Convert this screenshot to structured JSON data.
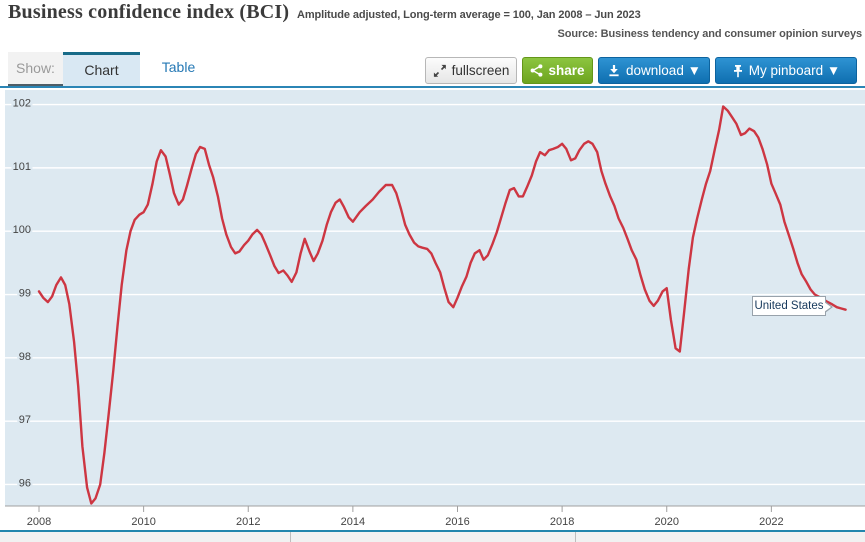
{
  "header": {
    "title": "Business confidence index (BCI)",
    "subtitle": "Amplitude adjusted, Long-term average = 100, Jan 2008 – Jun 2023",
    "source": "Source: Business tendency and consumer opinion surveys"
  },
  "toolbar": {
    "show_label": "Show:",
    "tabs": [
      {
        "label": "Chart",
        "active": true
      },
      {
        "label": "Table",
        "active": false
      }
    ],
    "buttons": {
      "fullscreen": "fullscreen",
      "share": "share",
      "download": "download ▼",
      "pinboard": "My pinboard ▼"
    }
  },
  "tooltip": {
    "label": "United States"
  },
  "colors": {
    "line": "#cd3642",
    "plot_bg": "#dde9f1",
    "grid": "#ffffff",
    "axis_text": "#444444",
    "axis_line": "#a0a0a0",
    "accent_blue": "#1778bb",
    "accent_green": "#7ab42c",
    "tab_underline": "#2b85b5"
  },
  "chart_data": {
    "type": "line",
    "title": "Business confidence index (BCI)",
    "subtitle": "Amplitude adjusted, Long-term average = 100, Jan 2008 – Jun 2023",
    "xlabel": "",
    "ylabel": "",
    "x_range": [
      2007.35,
      2023.79
    ],
    "y_range": [
      95.66,
      102.23
    ],
    "yticks": [
      96,
      97,
      98,
      99,
      100,
      101,
      102
    ],
    "xticks": [
      2008,
      2010,
      2012,
      2014,
      2016,
      2018,
      2020,
      2022
    ],
    "grid": true,
    "legend_position": "inline-tooltip",
    "series": [
      {
        "name": "United States",
        "points": [
          [
            2008.0,
            99.05
          ],
          [
            2008.08,
            98.95
          ],
          [
            2008.17,
            98.88
          ],
          [
            2008.25,
            98.97
          ],
          [
            2008.33,
            99.15
          ],
          [
            2008.42,
            99.27
          ],
          [
            2008.5,
            99.15
          ],
          [
            2008.58,
            98.85
          ],
          [
            2008.67,
            98.25
          ],
          [
            2008.75,
            97.55
          ],
          [
            2008.83,
            96.6
          ],
          [
            2008.92,
            95.95
          ],
          [
            2009.0,
            95.7
          ],
          [
            2009.08,
            95.78
          ],
          [
            2009.17,
            96.0
          ],
          [
            2009.25,
            96.5
          ],
          [
            2009.33,
            97.1
          ],
          [
            2009.42,
            97.8
          ],
          [
            2009.5,
            98.5
          ],
          [
            2009.58,
            99.15
          ],
          [
            2009.67,
            99.7
          ],
          [
            2009.75,
            100.0
          ],
          [
            2009.83,
            100.18
          ],
          [
            2009.92,
            100.26
          ],
          [
            2010.0,
            100.3
          ],
          [
            2010.08,
            100.42
          ],
          [
            2010.17,
            100.75
          ],
          [
            2010.25,
            101.1
          ],
          [
            2010.33,
            101.28
          ],
          [
            2010.42,
            101.18
          ],
          [
            2010.5,
            100.9
          ],
          [
            2010.58,
            100.6
          ],
          [
            2010.67,
            100.42
          ],
          [
            2010.75,
            100.5
          ],
          [
            2010.83,
            100.72
          ],
          [
            2010.92,
            101.0
          ],
          [
            2011.0,
            101.22
          ],
          [
            2011.08,
            101.33
          ],
          [
            2011.17,
            101.3
          ],
          [
            2011.25,
            101.05
          ],
          [
            2011.33,
            100.85
          ],
          [
            2011.42,
            100.55
          ],
          [
            2011.5,
            100.2
          ],
          [
            2011.58,
            99.95
          ],
          [
            2011.67,
            99.75
          ],
          [
            2011.75,
            99.65
          ],
          [
            2011.83,
            99.68
          ],
          [
            2011.92,
            99.78
          ],
          [
            2012.0,
            99.85
          ],
          [
            2012.08,
            99.95
          ],
          [
            2012.17,
            100.02
          ],
          [
            2012.25,
            99.95
          ],
          [
            2012.33,
            99.8
          ],
          [
            2012.42,
            99.62
          ],
          [
            2012.5,
            99.45
          ],
          [
            2012.58,
            99.34
          ],
          [
            2012.67,
            99.38
          ],
          [
            2012.75,
            99.3
          ],
          [
            2012.83,
            99.2
          ],
          [
            2012.92,
            99.35
          ],
          [
            2013.0,
            99.65
          ],
          [
            2013.08,
            99.88
          ],
          [
            2013.17,
            99.68
          ],
          [
            2013.25,
            99.53
          ],
          [
            2013.33,
            99.65
          ],
          [
            2013.42,
            99.85
          ],
          [
            2013.5,
            100.1
          ],
          [
            2013.58,
            100.3
          ],
          [
            2013.67,
            100.45
          ],
          [
            2013.75,
            100.5
          ],
          [
            2013.83,
            100.38
          ],
          [
            2013.92,
            100.22
          ],
          [
            2014.0,
            100.15
          ],
          [
            2014.13,
            100.3
          ],
          [
            2014.25,
            100.4
          ],
          [
            2014.38,
            100.5
          ],
          [
            2014.5,
            100.62
          ],
          [
            2014.63,
            100.73
          ],
          [
            2014.75,
            100.73
          ],
          [
            2014.83,
            100.6
          ],
          [
            2014.92,
            100.35
          ],
          [
            2015.0,
            100.1
          ],
          [
            2015.08,
            99.95
          ],
          [
            2015.17,
            99.82
          ],
          [
            2015.25,
            99.76
          ],
          [
            2015.33,
            99.74
          ],
          [
            2015.42,
            99.72
          ],
          [
            2015.5,
            99.65
          ],
          [
            2015.58,
            99.5
          ],
          [
            2015.67,
            99.35
          ],
          [
            2015.75,
            99.1
          ],
          [
            2015.83,
            98.88
          ],
          [
            2015.92,
            98.8
          ],
          [
            2016.0,
            98.95
          ],
          [
            2016.08,
            99.12
          ],
          [
            2016.17,
            99.28
          ],
          [
            2016.25,
            99.5
          ],
          [
            2016.33,
            99.65
          ],
          [
            2016.42,
            99.7
          ],
          [
            2016.5,
            99.55
          ],
          [
            2016.58,
            99.62
          ],
          [
            2016.67,
            99.8
          ],
          [
            2016.75,
            99.98
          ],
          [
            2016.83,
            100.2
          ],
          [
            2016.92,
            100.45
          ],
          [
            2017.0,
            100.65
          ],
          [
            2017.08,
            100.68
          ],
          [
            2017.17,
            100.55
          ],
          [
            2017.25,
            100.55
          ],
          [
            2017.33,
            100.7
          ],
          [
            2017.42,
            100.88
          ],
          [
            2017.5,
            101.1
          ],
          [
            2017.58,
            101.25
          ],
          [
            2017.67,
            101.2
          ],
          [
            2017.75,
            101.28
          ],
          [
            2017.83,
            101.3
          ],
          [
            2017.92,
            101.33
          ],
          [
            2018.0,
            101.38
          ],
          [
            2018.08,
            101.3
          ],
          [
            2018.17,
            101.12
          ],
          [
            2018.25,
            101.15
          ],
          [
            2018.33,
            101.28
          ],
          [
            2018.42,
            101.38
          ],
          [
            2018.5,
            101.42
          ],
          [
            2018.58,
            101.38
          ],
          [
            2018.67,
            101.25
          ],
          [
            2018.75,
            100.95
          ],
          [
            2018.83,
            100.75
          ],
          [
            2018.92,
            100.55
          ],
          [
            2019.0,
            100.4
          ],
          [
            2019.08,
            100.2
          ],
          [
            2019.17,
            100.05
          ],
          [
            2019.25,
            99.88
          ],
          [
            2019.33,
            99.7
          ],
          [
            2019.42,
            99.55
          ],
          [
            2019.5,
            99.3
          ],
          [
            2019.58,
            99.08
          ],
          [
            2019.67,
            98.9
          ],
          [
            2019.75,
            98.82
          ],
          [
            2019.83,
            98.9
          ],
          [
            2019.92,
            99.05
          ],
          [
            2020.0,
            99.1
          ],
          [
            2020.08,
            98.6
          ],
          [
            2020.17,
            98.15
          ],
          [
            2020.25,
            98.1
          ],
          [
            2020.33,
            98.7
          ],
          [
            2020.42,
            99.4
          ],
          [
            2020.5,
            99.9
          ],
          [
            2020.58,
            100.2
          ],
          [
            2020.67,
            100.5
          ],
          [
            2020.75,
            100.75
          ],
          [
            2020.83,
            100.95
          ],
          [
            2020.92,
            101.3
          ],
          [
            2021.0,
            101.6
          ],
          [
            2021.08,
            101.97
          ],
          [
            2021.17,
            101.9
          ],
          [
            2021.25,
            101.8
          ],
          [
            2021.33,
            101.7
          ],
          [
            2021.42,
            101.52
          ],
          [
            2021.5,
            101.55
          ],
          [
            2021.58,
            101.62
          ],
          [
            2021.67,
            101.58
          ],
          [
            2021.75,
            101.48
          ],
          [
            2021.83,
            101.3
          ],
          [
            2021.92,
            101.05
          ],
          [
            2022.0,
            100.75
          ],
          [
            2022.08,
            100.6
          ],
          [
            2022.17,
            100.42
          ],
          [
            2022.25,
            100.15
          ],
          [
            2022.33,
            99.95
          ],
          [
            2022.42,
            99.72
          ],
          [
            2022.5,
            99.5
          ],
          [
            2022.58,
            99.32
          ],
          [
            2022.67,
            99.2
          ],
          [
            2022.75,
            99.08
          ],
          [
            2022.83,
            99.0
          ],
          [
            2022.92,
            98.96
          ],
          [
            2023.0,
            98.92
          ],
          [
            2023.08,
            98.88
          ],
          [
            2023.17,
            98.84
          ],
          [
            2023.25,
            98.8
          ],
          [
            2023.33,
            98.78
          ],
          [
            2023.42,
            98.76
          ]
        ]
      }
    ]
  }
}
